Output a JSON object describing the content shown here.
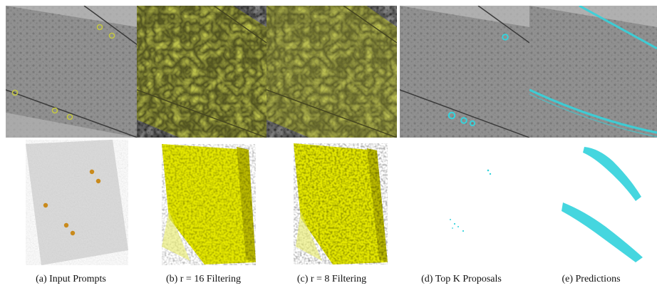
{
  "figure": {
    "captions": [
      "(a) Input Prompts",
      "(b) r = 16 Filtering",
      "(c) r = 8 Filtering",
      "(d) Top K Proposals",
      "(e) Predictions"
    ]
  },
  "colors": {
    "tomogram_gray": "#8d8d8d",
    "yellow_mask": "#c9cf3a",
    "yellow_voxel": "#e3e600",
    "cyan": "#35d3dc",
    "orange_prompt": "#c98a1c"
  }
}
